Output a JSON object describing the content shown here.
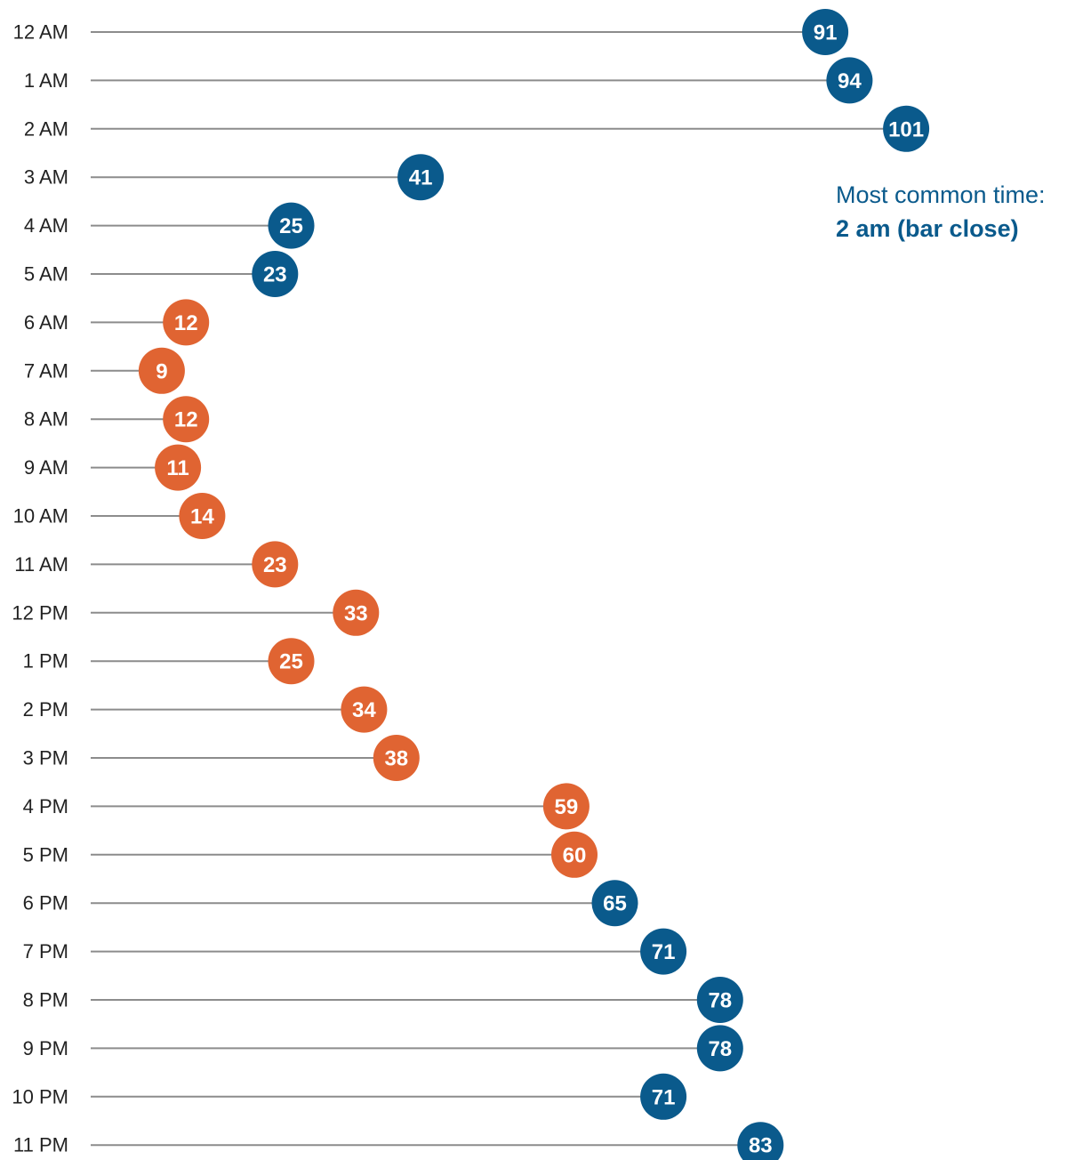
{
  "colors": {
    "night": "#0a5a8c",
    "day": "#e06432",
    "stem": "#8c8c8c"
  },
  "annotation": {
    "line1": "Most common time:",
    "line2": "2 am (bar close)"
  },
  "chart_data": {
    "type": "lollipop",
    "orientation": "horizontal",
    "categories": [
      "12 AM",
      "1 AM",
      "2 AM",
      "3 AM",
      "4 AM",
      "5 AM",
      "6 AM",
      "7 AM",
      "8 AM",
      "9 AM",
      "10 AM",
      "11 AM",
      "12 PM",
      "1 PM",
      "2 PM",
      "3 PM",
      "4 PM",
      "5 PM",
      "6 PM",
      "7 PM",
      "8 PM",
      "9 PM",
      "10 PM",
      "11 PM"
    ],
    "values": [
      91,
      94,
      101,
      41,
      25,
      23,
      12,
      9,
      12,
      11,
      14,
      23,
      33,
      25,
      34,
      38,
      59,
      60,
      65,
      71,
      78,
      78,
      71,
      83
    ],
    "groups": [
      "night",
      "night",
      "night",
      "night",
      "night",
      "night",
      "day",
      "day",
      "day",
      "day",
      "day",
      "day",
      "day",
      "day",
      "day",
      "day",
      "day",
      "day",
      "night",
      "night",
      "night",
      "night",
      "night",
      "night"
    ],
    "xlim": [
      0,
      101
    ],
    "grid": false,
    "legend": "none",
    "title": "",
    "xlabel": "",
    "ylabel": ""
  }
}
